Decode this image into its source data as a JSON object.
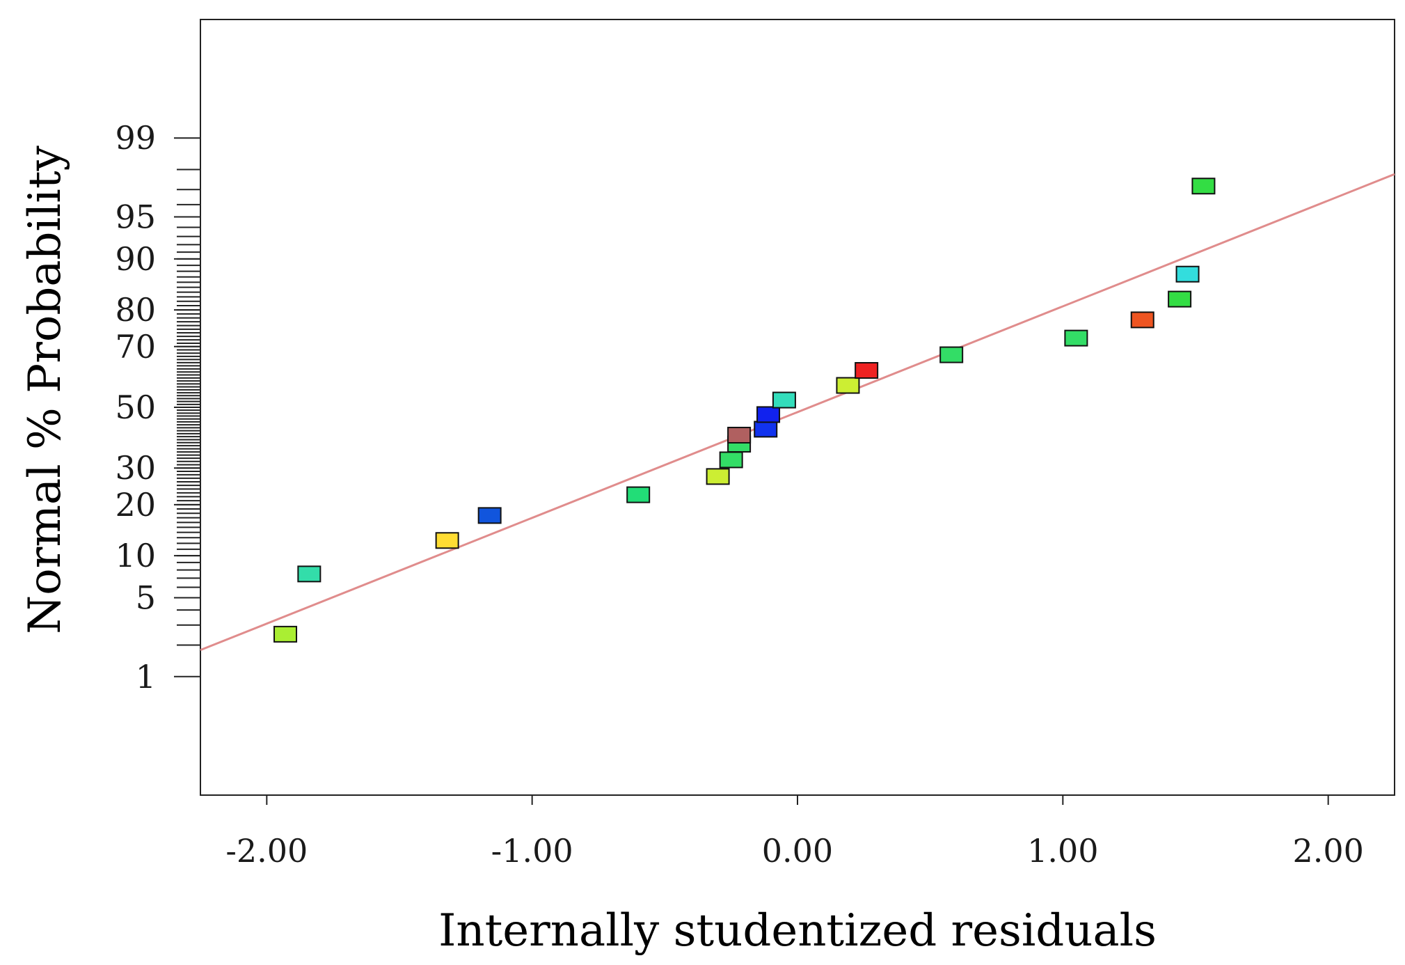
{
  "chart_data": {
    "type": "scatter",
    "title": "",
    "xlabel": "Internally studentized residuals",
    "ylabel": "Normal % Probability",
    "xlim": [
      -2.25,
      2.25
    ],
    "x_ticks": [
      -2.0,
      -1.0,
      0.0,
      1.0,
      2.0
    ],
    "x_tick_labels": [
      "-2.00",
      "-1.00",
      "0.00",
      "1.00",
      "2.00"
    ],
    "y_scale": "normal-probability",
    "y_ticks": [
      1,
      5,
      10,
      20,
      30,
      50,
      70,
      80,
      90,
      95,
      99
    ],
    "y_tick_labels": [
      "1",
      "5",
      "10",
      "20",
      "30",
      "50",
      "70",
      "80",
      "90",
      "95",
      "99"
    ],
    "reference_line": {
      "color": "#e08c8c",
      "points": [
        {
          "x": -2.25,
          "p": 1.8
        },
        {
          "x": 2.25,
          "p": 97.8
        }
      ]
    },
    "points": [
      {
        "x": -1.93,
        "p": 2.5,
        "color": "#aaee33"
      },
      {
        "x": -1.84,
        "p": 7.5,
        "color": "#33ddaa"
      },
      {
        "x": -1.32,
        "p": 12.5,
        "color": "#ffdd33"
      },
      {
        "x": -1.16,
        "p": 17.5,
        "color": "#1155dd"
      },
      {
        "x": -0.6,
        "p": 22.5,
        "color": "#22dd77"
      },
      {
        "x": -0.3,
        "p": 27.5,
        "color": "#ccee33"
      },
      {
        "x": -0.25,
        "p": 32.5,
        "color": "#33dd66"
      },
      {
        "x": -0.22,
        "p": 37.5,
        "color": "#33dd66"
      },
      {
        "x": -0.22,
        "p": 40.5,
        "color": "#b06060"
      },
      {
        "x": -0.12,
        "p": 42.5,
        "color": "#1133ee"
      },
      {
        "x": -0.11,
        "p": 47.5,
        "color": "#1122ee"
      },
      {
        "x": -0.05,
        "p": 52.5,
        "color": "#33ddbb"
      },
      {
        "x": 0.19,
        "p": 57.5,
        "color": "#ccee33"
      },
      {
        "x": 0.26,
        "p": 62.5,
        "color": "#ee2222"
      },
      {
        "x": 0.58,
        "p": 67.5,
        "color": "#33dd66"
      },
      {
        "x": 1.05,
        "p": 72.5,
        "color": "#33dd66"
      },
      {
        "x": 1.3,
        "p": 77.5,
        "color": "#ee5522"
      },
      {
        "x": 1.44,
        "p": 82.5,
        "color": "#33dd44"
      },
      {
        "x": 1.47,
        "p": 87.5,
        "color": "#33dddd"
      },
      {
        "x": 1.53,
        "p": 97.2,
        "color": "#33dd44"
      }
    ]
  }
}
